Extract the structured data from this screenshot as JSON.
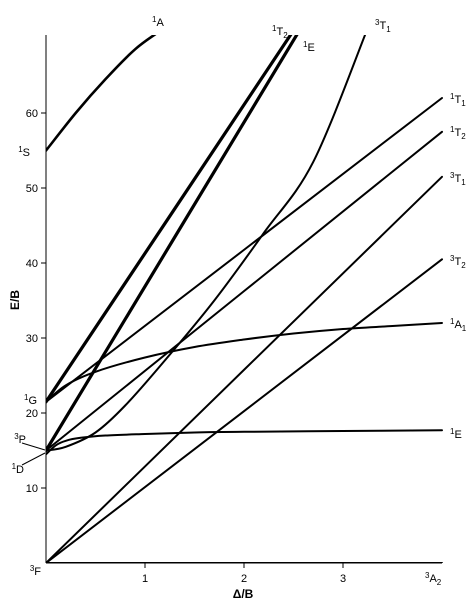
{
  "chart_data": {
    "type": "line",
    "title": "",
    "xlabel": "Δ/B",
    "ylabel": "E/B",
    "xlim": [
      0,
      4
    ],
    "ylim": [
      0,
      70
    ],
    "x_ticks": [
      "1",
      "2",
      "3"
    ],
    "y_ticks": [
      "10",
      "20",
      "30",
      "40",
      "50",
      "60"
    ],
    "grid": false,
    "left_labels": [
      {
        "sup": "1",
        "main": "S"
      },
      {
        "sup": "1",
        "main": "G"
      },
      {
        "sup": "3",
        "main": "P"
      },
      {
        "sup": "1",
        "main": "D"
      },
      {
        "sup": "3",
        "main": "F"
      }
    ],
    "series": [
      {
        "name": "1A",
        "label": {
          "sup": "1",
          "main": "A",
          "sub": ""
        },
        "width": 2.6,
        "x": [
          0,
          0.3,
          0.6,
          0.9,
          1.16
        ],
        "y": [
          55,
          60,
          64.5,
          68.5,
          71
        ]
      },
      {
        "name": "1T2 (upper)",
        "label": {
          "sup": "1",
          "main": "T",
          "sub": "2"
        },
        "width": 3.2,
        "x": [
          0,
          2.5
        ],
        "y": [
          21.5,
          71
        ]
      },
      {
        "name": "1E (upper)",
        "label": {
          "sup": "1",
          "main": "E",
          "sub": ""
        },
        "width": 3.2,
        "x": [
          0,
          2.56
        ],
        "y": [
          15,
          71
        ]
      },
      {
        "name": "3T1 (upper)",
        "label": {
          "sup": "3",
          "main": "T",
          "sub": "1"
        },
        "width": 2,
        "x": [
          0,
          0.2,
          0.5,
          0.8,
          1.2,
          1.7,
          2.2,
          2.7,
          3.24
        ],
        "y": [
          15,
          15.5,
          17.4,
          21,
          27,
          35,
          44,
          53.5,
          71
        ]
      },
      {
        "name": "1T1",
        "label": {
          "sup": "1",
          "main": "T",
          "sub": "1"
        },
        "width": 2,
        "x": [
          0,
          4
        ],
        "y": [
          21.5,
          62
        ]
      },
      {
        "name": "1T2 (lower)",
        "label": {
          "sup": "1",
          "main": "T",
          "sub": "2"
        },
        "width": 2,
        "x": [
          0,
          4
        ],
        "y": [
          15,
          57.5
        ]
      },
      {
        "name": "3T1 (lower)",
        "label": {
          "sup": "3",
          "main": "T",
          "sub": "1"
        },
        "width": 2,
        "x": [
          0,
          4
        ],
        "y": [
          0,
          51.5
        ]
      },
      {
        "name": "3T2",
        "label": {
          "sup": "3",
          "main": "T",
          "sub": "2"
        },
        "width": 2,
        "x": [
          0,
          4
        ],
        "y": [
          0,
          40.5
        ]
      },
      {
        "name": "1A1",
        "label": {
          "sup": "1",
          "main": "A",
          "sub": "1"
        },
        "width": 2,
        "x": [
          0,
          0.2,
          0.5,
          1,
          1.5,
          2,
          2.5,
          3,
          3.5,
          4
        ],
        "y": [
          21.5,
          23.7,
          25.5,
          27.4,
          28.8,
          29.8,
          30.6,
          31.2,
          31.6,
          32
        ]
      },
      {
        "name": "1E (lower)",
        "label": {
          "sup": "1",
          "main": "E",
          "sub": ""
        },
        "width": 2,
        "x": [
          0,
          0.1,
          0.2,
          0.35,
          0.6,
          1,
          1.5,
          2,
          3,
          4
        ],
        "y": [
          14.5,
          15.7,
          16.3,
          16.7,
          17,
          17.2,
          17.4,
          17.5,
          17.6,
          17.7
        ]
      },
      {
        "name": "3A2",
        "label": {
          "sup": "3",
          "main": "A",
          "sub": "2"
        },
        "width": 2,
        "x": [
          0,
          4
        ],
        "y": [
          0,
          0
        ]
      }
    ]
  }
}
